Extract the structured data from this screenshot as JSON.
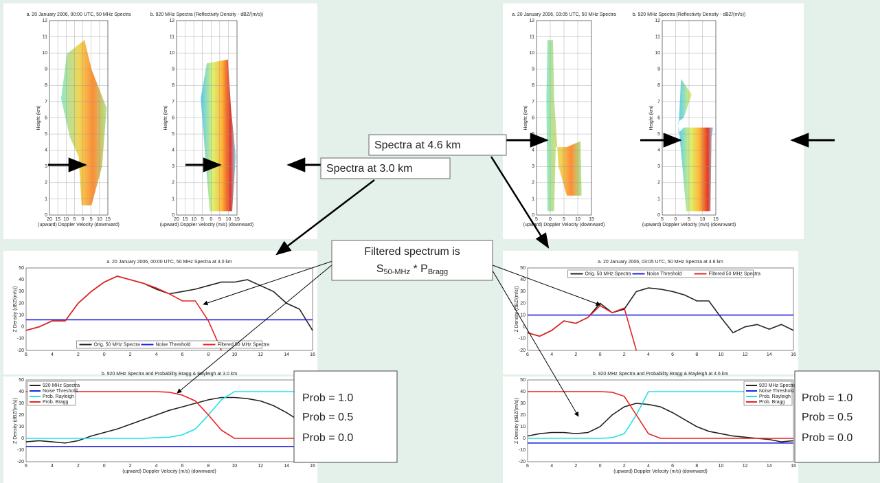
{
  "chart_data": [
    {
      "type": "spectra",
      "title": "a. 20 January 2006, 00:00 UTC, 50 MHz Spectra",
      "xlabel": "(upward)   Doppler Velocity   (downward)",
      "ylabel": "Height (km)",
      "variant": "50",
      "xlim": [
        -20,
        15
      ],
      "xticks": [
        {
          "value": -20,
          "label": "20"
        },
        {
          "value": -15,
          "label": "15"
        },
        {
          "value": -10,
          "label": "10"
        },
        {
          "value": -5,
          "label": "5"
        },
        0,
        5,
        10,
        15
      ],
      "ylim": [
        0,
        12
      ],
      "yticks": [
        0,
        1,
        2,
        3,
        4,
        5,
        6,
        7,
        8,
        9,
        10,
        11,
        12
      ]
    },
    {
      "type": "spectra",
      "title": "b. 920 MHz Spectra (Reflectivity Density - dBZ/(m/s))",
      "xlabel": "(upward)  Doppler Velocity (m/s)  (downward)",
      "ylabel": "Height (km)",
      "variant": "920",
      "xlim": [
        -20,
        15
      ],
      "xticks": [
        {
          "value": -20,
          "label": "20"
        },
        {
          "value": -15,
          "label": "15"
        },
        {
          "value": -10,
          "label": "10"
        },
        {
          "value": -5,
          "label": "5"
        },
        0,
        5,
        10,
        15
      ],
      "ylim": [
        0,
        12
      ],
      "yticks": [
        0,
        1,
        2,
        3,
        4,
        5,
        6,
        7,
        8,
        9,
        10,
        11,
        12
      ]
    },
    {
      "type": "spectra",
      "title": "a. 20 January 2006, 03:05 UTC, 50 MHz Spectra",
      "xlabel": "(upward)   Doppler Velocity   (downward)",
      "ylabel": "Height (km)",
      "variant": "50b",
      "xlim": [
        -5,
        15
      ],
      "xticks": [
        {
          "value": -5,
          "label": "5"
        },
        0,
        5,
        10,
        15
      ],
      "ylim": [
        0,
        12
      ],
      "yticks": [
        0,
        1,
        2,
        3,
        4,
        5,
        6,
        7,
        8,
        9,
        10,
        11,
        12
      ]
    },
    {
      "type": "spectra",
      "title": "b. 920 MHz Spectra (Reflectivity Density - dBZ/(m/s))",
      "xlabel": "(upward)  Doppler Velocity (m/s)  (downward)",
      "ylabel": "Height (km)",
      "variant": "920b",
      "xlim": [
        -5,
        15
      ],
      "xticks": [
        {
          "value": -5,
          "label": "5"
        },
        0,
        5,
        10,
        15
      ],
      "ylim": [
        0,
        12
      ],
      "yticks": [
        0,
        1,
        2,
        3,
        4,
        5,
        6,
        7,
        8,
        9,
        10,
        11,
        12
      ]
    },
    {
      "type": "line",
      "title": "a. 20 January 2006, 00:00 UTC, 50 MHz Spectra at 3.0 km",
      "ylabel": "Z Density (dBZ/(m/s))",
      "legend": "lower center",
      "x": [
        -6,
        -5,
        -4,
        -3,
        -2,
        -1,
        0,
        1,
        2,
        3,
        4,
        5,
        6,
        7,
        8,
        9,
        10,
        11,
        12,
        13,
        14,
        15,
        16
      ],
      "xlim": [
        -6,
        16
      ],
      "xticks": [
        {
          "value": -6,
          "label": "6"
        },
        {
          "value": -4,
          "label": "4"
        },
        {
          "value": -2,
          "label": "2"
        },
        0,
        2,
        4,
        6,
        8,
        10,
        12,
        14,
        16
      ],
      "ylim": [
        -20,
        50
      ],
      "yticks": [
        -20,
        -10,
        0,
        10,
        20,
        30,
        40,
        50
      ],
      "series": [
        {
          "name": "Orig. 50 MHz Spectra",
          "color": "#222222",
          "values": [
            -3,
            0,
            5,
            5,
            20,
            30,
            38,
            43,
            40,
            37,
            32,
            28,
            30,
            32,
            35,
            38,
            38,
            40,
            35,
            30,
            20,
            15,
            -3
          ]
        },
        {
          "name": "Noise Threshold",
          "color": "#2020e0",
          "values": [
            6,
            6,
            6,
            6,
            6,
            6,
            6,
            6,
            6,
            6,
            6,
            6,
            6,
            6,
            6,
            6,
            6,
            6,
            6,
            6,
            6,
            6,
            6
          ]
        },
        {
          "name": "Filtered 50 MHz Spectra",
          "color": "#e82020",
          "values": [
            -3,
            0,
            5,
            5,
            20,
            30,
            38,
            43,
            40,
            37,
            33,
            28,
            22,
            22,
            5,
            -20,
            null,
            null,
            null,
            null,
            null,
            null,
            null
          ]
        }
      ]
    },
    {
      "type": "line",
      "title": "b. 920 MHz Spectra and Probability Bragg & Rayleigh at 3.0 km",
      "xlabel": "(upward)   Doppler Velocity (m/s)   (downward)",
      "ylabel": "Z Density (dBZ/(m/s))",
      "legend": "upper left",
      "x": [
        -6,
        -5,
        -4,
        -3,
        -2,
        -1,
        0,
        1,
        2,
        3,
        4,
        5,
        6,
        7,
        8,
        9,
        10,
        11,
        12,
        13,
        14,
        15,
        16
      ],
      "xlim": [
        -6,
        16
      ],
      "xticks": [
        {
          "value": -6,
          "label": "6"
        },
        {
          "value": -4,
          "label": "4"
        },
        {
          "value": -2,
          "label": "2"
        },
        0,
        2,
        4,
        6,
        8,
        10,
        12,
        14,
        16
      ],
      "ylim": [
        -20,
        50
      ],
      "yticks": [
        -20,
        -10,
        0,
        10,
        20,
        30,
        40,
        50
      ],
      "series": [
        {
          "name": "920 MHz Spectra",
          "color": "#222222",
          "values": [
            -3,
            -2,
            -3,
            -4,
            -2,
            2,
            5,
            8,
            12,
            16,
            20,
            24,
            27,
            30,
            33,
            35,
            35,
            34,
            32,
            28,
            22,
            15,
            8
          ]
        },
        {
          "name": "Noise Threshold",
          "color": "#2020e0",
          "values": [
            -7,
            -7,
            -7,
            -7,
            -7,
            -7,
            -7,
            -7,
            -7,
            -7,
            -7,
            -7,
            -7,
            -7,
            -7,
            -7,
            -7,
            -7,
            -7,
            -7,
            -7,
            -7,
            -7
          ]
        },
        {
          "name": "Prob. Rayleigh",
          "color": "#20e0e8",
          "values": [
            0,
            0,
            0,
            0,
            0,
            0,
            0,
            0,
            0,
            0,
            0.5,
            1,
            3,
            8,
            20,
            33,
            40,
            40,
            40,
            40,
            40,
            40,
            40
          ]
        },
        {
          "name": "Prob. Bragg",
          "color": "#e82020",
          "values": [
            40,
            40,
            40,
            40,
            40,
            40,
            40,
            40,
            40,
            40,
            40,
            39.5,
            37,
            32,
            20,
            7,
            0,
            0,
            0,
            0,
            0,
            0,
            0
          ]
        }
      ]
    },
    {
      "type": "line",
      "title": "a. 20 January 2006, 03:05 UTC, 50 MHz Spectra at 4.6 km",
      "ylabel": "Z Density (dBZ/(m/s))",
      "legend": "upper center",
      "x": [
        -6,
        -5,
        -4,
        -3,
        -2,
        -1,
        0,
        1,
        2,
        3,
        4,
        5,
        6,
        7,
        8,
        9,
        10,
        11,
        12,
        13,
        14,
        15,
        16
      ],
      "xlim": [
        -6,
        16
      ],
      "xticks": [
        {
          "value": -6,
          "label": "6"
        },
        {
          "value": -4,
          "label": "4"
        },
        {
          "value": -2,
          "label": "2"
        },
        0,
        2,
        4,
        6,
        8,
        10,
        12,
        14,
        16
      ],
      "ylim": [
        -20,
        50
      ],
      "yticks": [
        -20,
        -10,
        0,
        10,
        20,
        30,
        40,
        50
      ],
      "series": [
        {
          "name": "Orig. 50 MHz Spectra",
          "color": "#222222",
          "values": [
            -5,
            -8,
            -3,
            5,
            3,
            8,
            20,
            12,
            15,
            30,
            33,
            32,
            30,
            27,
            22,
            22,
            8,
            -5,
            0,
            2,
            -2,
            2,
            -3
          ]
        },
        {
          "name": "Noise Threshold",
          "color": "#2020e0",
          "values": [
            10,
            10,
            10,
            10,
            10,
            10,
            10,
            10,
            10,
            10,
            10,
            10,
            10,
            10,
            10,
            10,
            10,
            10,
            10,
            10,
            10,
            10,
            10
          ]
        },
        {
          "name": "Filtered 50 MHz Spectra",
          "color": "#e82020",
          "values": [
            -5,
            -8,
            -3,
            5,
            3,
            8,
            18,
            12,
            16,
            -20,
            null,
            null,
            null,
            null,
            null,
            null,
            null,
            null,
            null,
            null,
            null,
            null,
            null
          ]
        }
      ]
    },
    {
      "type": "line",
      "title": "b. 920 MHz Spectra and Probability Bragg & Rayleigh at 4.6 km",
      "xlabel": "(upward)   Doppler Velocity (m/s)   (downward)",
      "ylabel": "Z Density (dBZ/(m/s))",
      "legend": "upper right",
      "x": [
        -6,
        -5,
        -4,
        -3,
        -2,
        -1,
        0,
        1,
        2,
        3,
        4,
        5,
        6,
        7,
        8,
        9,
        10,
        11,
        12,
        13,
        14,
        15,
        16
      ],
      "xlim": [
        -6,
        16
      ],
      "xticks": [
        {
          "value": -6,
          "label": "6"
        },
        {
          "value": -4,
          "label": "4"
        },
        {
          "value": -2,
          "label": "2"
        },
        0,
        2,
        4,
        6,
        8,
        10,
        12,
        14,
        16
      ],
      "ylim": [
        -20,
        50
      ],
      "yticks": [
        -20,
        -10,
        0,
        10,
        20,
        30,
        40,
        50
      ],
      "series": [
        {
          "name": "920 MHz Spectra",
          "color": "#222222",
          "values": [
            2,
            4,
            5,
            5,
            4,
            5,
            10,
            20,
            27,
            30,
            29,
            27,
            22,
            16,
            10,
            6,
            4,
            2,
            1,
            0,
            -1,
            -3,
            -2
          ]
        },
        {
          "name": "Noise Threshold",
          "color": "#2020e0",
          "values": [
            -4,
            -4,
            -4,
            -4,
            -4,
            -4,
            -4,
            -4,
            -4,
            -4,
            -4,
            -4,
            -4,
            -4,
            -4,
            -4,
            -4,
            -4,
            -4,
            -4,
            -4,
            -4,
            -4
          ]
        },
        {
          "name": "Prob. Rayleigh",
          "color": "#20e0e8",
          "values": [
            0,
            0,
            0,
            0,
            0,
            0,
            0,
            0.5,
            4,
            20,
            40,
            40,
            40,
            40,
            40,
            40,
            40,
            40,
            40,
            40,
            40,
            40,
            40
          ]
        },
        {
          "name": "Prob. Bragg",
          "color": "#e82020",
          "values": [
            40,
            40,
            40,
            40,
            40,
            40,
            40,
            39.5,
            36,
            20,
            4,
            0,
            0,
            0,
            0,
            0,
            0,
            0,
            0,
            0,
            0,
            0,
            0
          ]
        }
      ]
    }
  ],
  "callouts": {
    "spectra_46": "Spectra at 4.6 km",
    "spectra_30": "Spectra at 3.0 km",
    "filtered": {
      "line1": "Filtered spectrum is",
      "s": "S",
      "s_sub": "50-MHz",
      "mid": " * P",
      "p_sub": "Bragg"
    },
    "prob_left": [
      "Prob = 1.0",
      "Prob = 0.5",
      "Prob = 0.0"
    ],
    "prob_right": [
      "Prob = 1.0",
      "Prob = 0.5",
      "Prob = 0.0"
    ]
  }
}
